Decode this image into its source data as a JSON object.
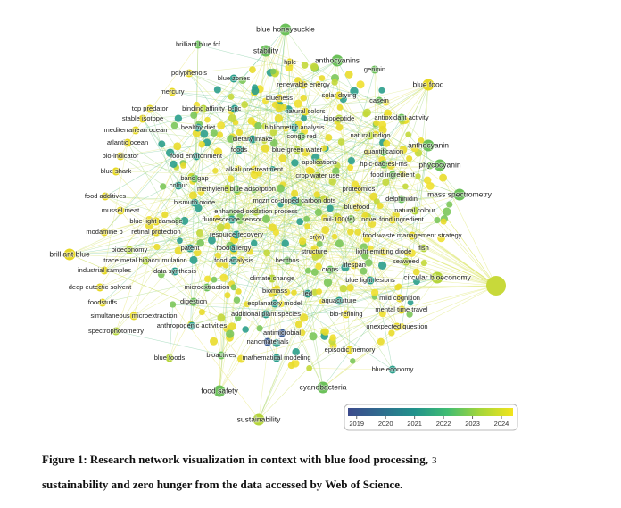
{
  "nodes": [
    {
      "label": "blue honeysuckle",
      "color": "#6cc15a"
    },
    {
      "label": "brilliant blue fcf",
      "color": "#6cc15a"
    },
    {
      "label": "stability",
      "color": "#6cc15a"
    },
    {
      "label": "hplc",
      "color": "#e6d823"
    },
    {
      "label": "anthocyanins",
      "color": "#6cc15a"
    },
    {
      "label": "polyphenols",
      "color": "#e6d823"
    },
    {
      "label": "genipin",
      "color": "#6cc15a"
    },
    {
      "label": "blue food",
      "color": "#e6d823"
    },
    {
      "label": "blue zones",
      "color": "#2b9f8c"
    },
    {
      "label": "renewable energy",
      "color": "#e6d823"
    },
    {
      "label": "mercury",
      "color": "#e6d823"
    },
    {
      "label": "blueness",
      "color": "#e6d823"
    },
    {
      "label": "solar drying",
      "color": "#e6d823"
    },
    {
      "label": "casein",
      "color": "#6cc15a"
    },
    {
      "label": "top predator",
      "color": "#e6d823"
    },
    {
      "label": "binding affinity",
      "color": "#b5d53a"
    },
    {
      "label": "b-pc",
      "color": "#2b9f8c"
    },
    {
      "label": "natural colors",
      "color": "#e6d823"
    },
    {
      "label": "antioxidant activity",
      "color": "#6cc15a"
    },
    {
      "label": "stable isotope",
      "color": "#e6d823"
    },
    {
      "label": "biopeptide",
      "color": "#b5d53a"
    },
    {
      "label": "mediterranean ocean",
      "color": "#e6d823"
    },
    {
      "label": "healthy diet",
      "color": "#2b9f8c"
    },
    {
      "label": "bibliometric analysis",
      "color": "#2b9f8c"
    },
    {
      "label": "natural indigo",
      "color": "#b5d53a"
    },
    {
      "label": "atlantic ocean",
      "color": "#e6d823"
    },
    {
      "label": "dietary intake",
      "color": "#2b9f8c"
    },
    {
      "label": "congo red",
      "color": "#6cc15a"
    },
    {
      "label": "anthocyanin",
      "color": "#6cc15a"
    },
    {
      "label": "foods",
      "color": "#2b9f8c"
    },
    {
      "label": "blue-green water",
      "color": "#b5d53a"
    },
    {
      "label": "quantification",
      "color": "#6cc15a"
    },
    {
      "label": "bio-indicator",
      "color": "#e6d823"
    },
    {
      "label": "food environment",
      "color": "#2b9f8c"
    },
    {
      "label": "applications",
      "color": "#b5d53a"
    },
    {
      "label": "hplc-dad-esi-ms",
      "color": "#6cc15a"
    },
    {
      "label": "phycocyanin",
      "color": "#6cc15a"
    },
    {
      "label": "blue shark",
      "color": "#e6d823"
    },
    {
      "label": "alkali pre-treatment",
      "color": "#e6d823"
    },
    {
      "label": "food ingredient",
      "color": "#6cc15a"
    },
    {
      "label": "mass spectrometry",
      "color": "#6cc15a"
    },
    {
      "label": "crop water use",
      "color": "#b5d53a"
    },
    {
      "label": "band gap",
      "color": "#6cc15a"
    },
    {
      "label": "colour",
      "color": "#2b9f8c"
    },
    {
      "label": "methylene blue adsorption",
      "color": "#6cc15a"
    },
    {
      "label": "proteomics",
      "color": "#e6d823"
    },
    {
      "label": "food additives",
      "color": "#e6d823"
    },
    {
      "label": "mgzn co-doped carbon dots",
      "color": "#2b9f8c"
    },
    {
      "label": "delphinidin",
      "color": "#6cc15a"
    },
    {
      "label": "bismuth oxide",
      "color": "#2b9f8c"
    },
    {
      "label": "enhanced oxidation process",
      "color": "#b5d53a"
    },
    {
      "label": "bluefood",
      "color": "#e6d823"
    },
    {
      "label": "natural colour",
      "color": "#b5d53a"
    },
    {
      "label": "mussel meat",
      "color": "#e6d823"
    },
    {
      "label": "fluorescence sensor",
      "color": "#2b9f8c"
    },
    {
      "label": "mil-100(fe)",
      "color": "#e6d823"
    },
    {
      "label": "novel food ingredient",
      "color": "#e6d823"
    },
    {
      "label": "blue light damage",
      "color": "#e6d823"
    },
    {
      "label": "retinal protection",
      "color": "#e6d823"
    },
    {
      "label": "modamine b",
      "color": "#e6d823"
    },
    {
      "label": "resource recovery",
      "color": "#2b9f8c"
    },
    {
      "label": "cr(vi)",
      "color": "#e6d823"
    },
    {
      "label": "food waste management strategy",
      "color": "#e6d823"
    },
    {
      "label": "bioeconomy",
      "color": "#b5d53a"
    },
    {
      "label": "patent",
      "color": "#2b9f8c"
    },
    {
      "label": "food allergy",
      "color": "#2b9f8c"
    },
    {
      "label": "structure",
      "color": "#e6d823"
    },
    {
      "label": "light emitting diode",
      "color": "#e6d823"
    },
    {
      "label": "fish",
      "color": "#b5d53a"
    },
    {
      "label": "brilliant blue",
      "color": "#e6d823"
    },
    {
      "label": "trace metal bioaccumulation",
      "color": "#b5d53a"
    },
    {
      "label": "food analysis",
      "color": "#2b9f8c"
    },
    {
      "label": "benthos",
      "color": "#6cc15a"
    },
    {
      "label": "lifespan",
      "color": "#e6d823"
    },
    {
      "label": "seaweed",
      "color": "#b5d53a"
    },
    {
      "label": "industrial samples",
      "color": "#e6d823"
    },
    {
      "label": "data synthesis",
      "color": "#2b9f8c"
    },
    {
      "label": "crops",
      "color": "#6cc15a"
    },
    {
      "label": "circular bioeconomy",
      "color": "#b5d53a"
    },
    {
      "label": "blue light lesions",
      "color": "#2b9f8c"
    },
    {
      "label": "climate change",
      "color": "#b5d53a"
    },
    {
      "label": "deep eutectic solvent",
      "color": "#e6d823"
    },
    {
      "label": "microextraction",
      "color": "#6cc15a"
    },
    {
      "label": "biomass",
      "color": "#e6d823"
    },
    {
      "label": "led",
      "color": "#2b9f8c"
    },
    {
      "label": "aquaculture",
      "color": "#2b9f8c"
    },
    {
      "label": "mild cognition",
      "color": "#e6d823"
    },
    {
      "label": "foodstuffs",
      "color": "#e6d823"
    },
    {
      "label": "digestion",
      "color": "#6cc15a"
    },
    {
      "label": "explanatory model",
      "color": "#2b9f8c"
    },
    {
      "label": "mental time travel",
      "color": "#e6d823"
    },
    {
      "label": "simultaneous microextraction",
      "color": "#e6d823"
    },
    {
      "label": "additional plant species",
      "color": "#2b9f8c"
    },
    {
      "label": "bio-refining",
      "color": "#e6d823"
    },
    {
      "label": "anthropogenic activities",
      "color": "#2b9f8c"
    },
    {
      "label": "unexpected question",
      "color": "#e6d823"
    },
    {
      "label": "spectrophotometry",
      "color": "#b5d53a"
    },
    {
      "label": "antimicrobial",
      "color": "#3c5d97"
    },
    {
      "label": "nanomaterials",
      "color": "#3c5d97"
    },
    {
      "label": "bioactives",
      "color": "#6cc15a"
    },
    {
      "label": "episodic memory",
      "color": "#e6d823"
    },
    {
      "label": "blue foods",
      "color": "#b5d53a"
    },
    {
      "label": "mathematical modeling",
      "color": "#2b9f8c"
    },
    {
      "label": "blue economy",
      "color": "#2b9f8c"
    },
    {
      "label": "cyanobacteria",
      "color": "#6cc15a"
    },
    {
      "label": "food safety",
      "color": "#6cc15a"
    },
    {
      "label": "sustainability",
      "color": "#b5d53a"
    }
  ],
  "color_legend": {
    "range": [
      2018.7,
      2024.4
    ],
    "ticks": [
      2019,
      2020,
      2021,
      2022,
      2023,
      2024
    ],
    "colors": [
      "#3c4a8c",
      "#2f6c8e",
      "#21918c",
      "#3fbc73",
      "#a5d63a",
      "#f2e41c"
    ]
  },
  "caption": {
    "line1": "Figure 1: Research network visualization in context with blue food processing,",
    "line_number": "3",
    "line2": "sustainability and zero hunger from the data accessed by Web of Science."
  }
}
